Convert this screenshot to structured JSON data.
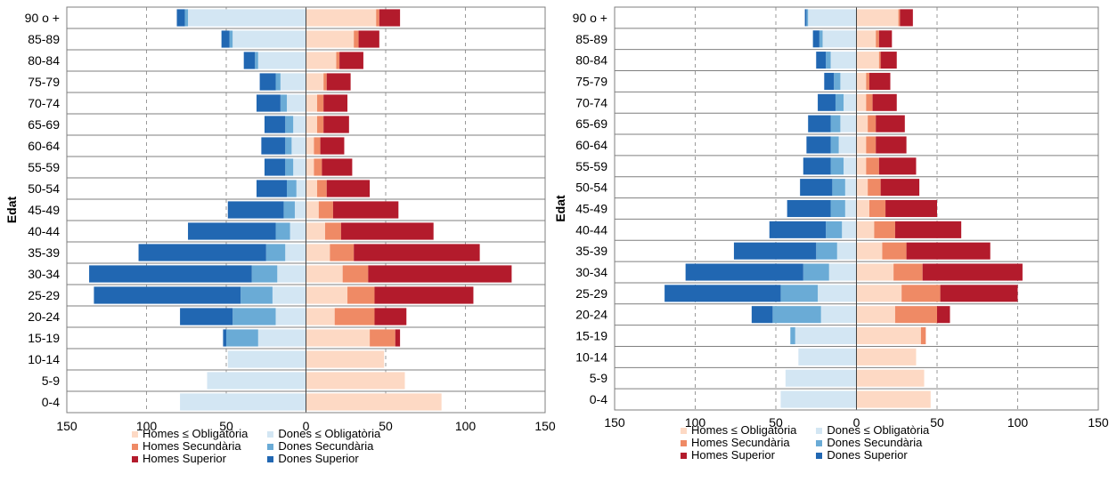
{
  "colors": {
    "homes_obl": "#fdd9c4",
    "homes_sec": "#ef8a65",
    "homes_sup": "#b31b2c",
    "dones_obl": "#d3e6f3",
    "dones_sec": "#6aabd6",
    "dones_sup": "#2167b2"
  },
  "legend": {
    "homes_obl": "Homes ≤ Obligatòria",
    "homes_sec": "Homes Secundària",
    "homes_sup": "Homes Superior",
    "dones_obl": "Dones ≤ Obligatòria",
    "dones_sec": "Dones Secundària",
    "dones_sup": "Dones Superior"
  },
  "chart_data": [
    {
      "type": "bar",
      "orientation": "horizontal-stacked-pyramid",
      "title": "",
      "ylabel": "Edat",
      "xlabel": "",
      "xlim": [
        -150,
        150
      ],
      "xticks": [
        -150,
        -100,
        -50,
        0,
        50,
        100,
        150
      ],
      "xtick_labels": [
        "150",
        "100",
        "50",
        "0",
        "50",
        "100",
        "150"
      ],
      "grid": "vertical dashed",
      "legend_position": "bottom",
      "categories": [
        "0-4",
        "5-9",
        "10-14",
        "15-19",
        "20-24",
        "25-29",
        "30-34",
        "35-39",
        "40-44",
        "45-49",
        "50-54",
        "55-59",
        "60-64",
        "65-69",
        "70-74",
        "75-79",
        "80-84",
        "85-89",
        "90 o +"
      ],
      "series": [
        {
          "name": "Homes ≤ Obligatòria",
          "key": "homes_obl",
          "values": [
            85,
            62,
            49,
            40,
            18,
            26,
            23,
            15,
            12,
            8,
            7,
            5,
            5,
            7,
            7,
            11,
            19,
            30,
            44
          ]
        },
        {
          "name": "Homes Secundària",
          "key": "homes_sec",
          "values": [
            0,
            0,
            0,
            16,
            25,
            17,
            16,
            15,
            10,
            9,
            6,
            5,
            4,
            4,
            4,
            2,
            2,
            3,
            2
          ]
        },
        {
          "name": "Homes Superior",
          "key": "homes_sup",
          "values": [
            0,
            0,
            0,
            3,
            20,
            62,
            90,
            79,
            58,
            41,
            27,
            19,
            15,
            16,
            15,
            15,
            15,
            13,
            13
          ]
        },
        {
          "name": "Dones ≤ Obligatòria",
          "key": "dones_obl",
          "values": [
            79,
            62,
            49,
            30,
            19,
            21,
            18,
            13,
            10,
            7,
            6,
            8,
            9,
            8,
            12,
            16,
            30,
            46,
            74
          ]
        },
        {
          "name": "Dones Secundària",
          "key": "dones_sec",
          "values": [
            0,
            0,
            0,
            20,
            27,
            20,
            16,
            12,
            9,
            7,
            6,
            5,
            4,
            5,
            4,
            3,
            2,
            2,
            2
          ]
        },
        {
          "name": "Dones Superior",
          "key": "dones_sup",
          "values": [
            0,
            0,
            0,
            2,
            33,
            92,
            102,
            80,
            55,
            35,
            19,
            13,
            15,
            13,
            15,
            10,
            7,
            5,
            5
          ]
        }
      ]
    },
    {
      "type": "bar",
      "orientation": "horizontal-stacked-pyramid",
      "title": "",
      "ylabel": "Edat",
      "xlabel": "",
      "xlim": [
        -150,
        150
      ],
      "xticks": [
        -150,
        -100,
        -50,
        0,
        50,
        100,
        150
      ],
      "xtick_labels": [
        "150",
        "100",
        "50",
        "0",
        "50",
        "100",
        "150"
      ],
      "grid": "vertical dashed",
      "legend_position": "bottom",
      "categories": [
        "0-4",
        "5-9",
        "10-14",
        "15-19",
        "20-24",
        "25-29",
        "30-34",
        "35-39",
        "40-44",
        "45-49",
        "50-54",
        "55-59",
        "60-64",
        "65-69",
        "70-74",
        "75-79",
        "80-84",
        "85-89",
        "90 o +"
      ],
      "series": [
        {
          "name": "Homes ≤ Obligatòria",
          "key": "homes_obl",
          "values": [
            46,
            42,
            37,
            40,
            24,
            28,
            23,
            16,
            11,
            8,
            7,
            6,
            6,
            7,
            6,
            6,
            14,
            12,
            26
          ]
        },
        {
          "name": "Homes Secundària",
          "key": "homes_sec",
          "values": [
            0,
            0,
            0,
            3,
            26,
            24,
            18,
            15,
            13,
            10,
            8,
            8,
            6,
            5,
            4,
            2,
            1,
            2,
            1
          ]
        },
        {
          "name": "Homes Superior",
          "key": "homes_sup",
          "values": [
            0,
            0,
            0,
            0,
            8,
            48,
            62,
            52,
            41,
            32,
            24,
            23,
            19,
            18,
            15,
            13,
            10,
            8,
            8
          ]
        },
        {
          "name": "Dones ≤ Obligatòria",
          "key": "dones_obl",
          "values": [
            47,
            44,
            36,
            38,
            22,
            24,
            17,
            12,
            9,
            7,
            7,
            8,
            11,
            10,
            8,
            10,
            16,
            21,
            30
          ]
        },
        {
          "name": "Dones Secundària",
          "key": "dones_sec",
          "values": [
            0,
            0,
            0,
            3,
            30,
            23,
            16,
            13,
            10,
            9,
            8,
            8,
            5,
            6,
            5,
            4,
            3,
            2,
            1
          ]
        },
        {
          "name": "Dones Superior",
          "key": "dones_sup",
          "values": [
            0,
            0,
            0,
            0,
            13,
            72,
            73,
            51,
            35,
            27,
            20,
            17,
            15,
            14,
            11,
            6,
            6,
            4,
            1
          ]
        }
      ]
    }
  ]
}
